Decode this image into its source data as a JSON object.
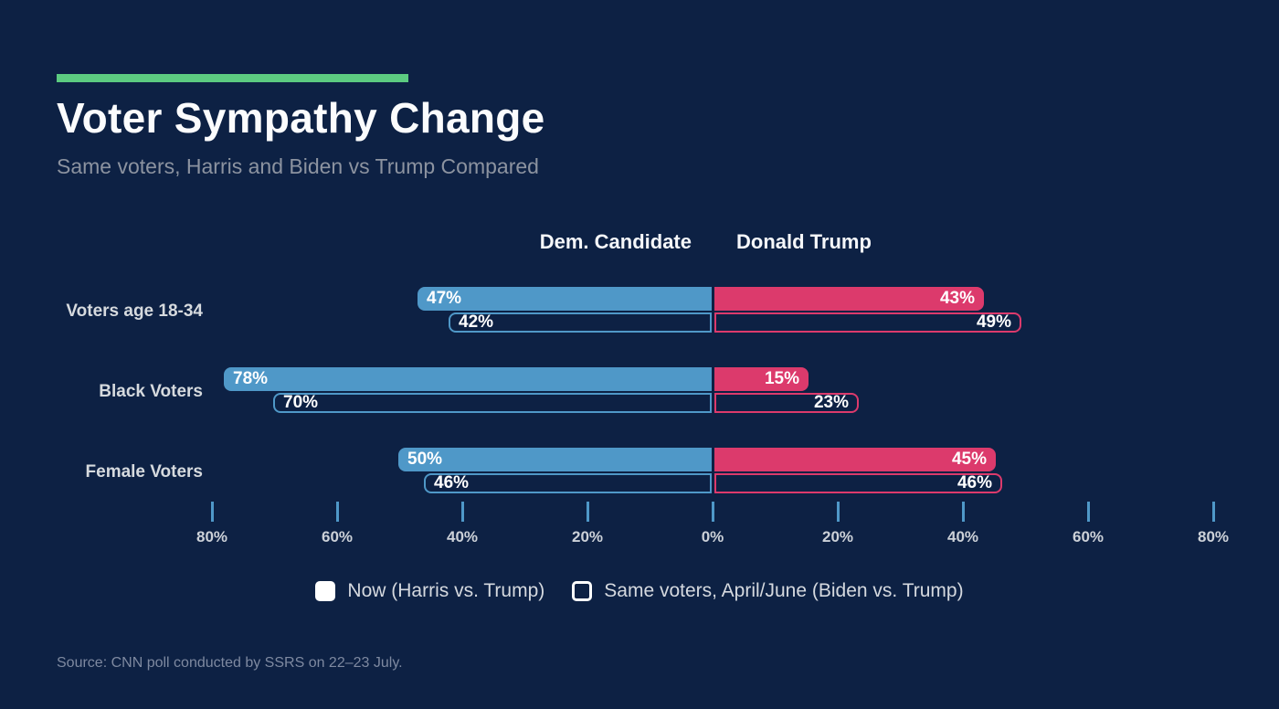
{
  "header": {
    "title": "Voter Sympathy Change",
    "subtitle": "Same voters, Harris and Biden vs Trump Compared"
  },
  "column_headers": {
    "dem": "Dem. Candidate",
    "trump": "Donald Trump"
  },
  "chart_data": {
    "type": "bar",
    "variant": "horizontal-diverging-grouped",
    "categories": [
      "Voters age 18-34",
      "Black Voters",
      "Female Voters"
    ],
    "series": [
      {
        "name": "Now (Harris vs. Trump)",
        "style": "filled",
        "dem_values": [
          47,
          78,
          50
        ],
        "trump_values": [
          43,
          15,
          45
        ]
      },
      {
        "name": "Same voters, April/June (Biden vs. Trump)",
        "style": "outlined",
        "dem_values": [
          42,
          70,
          46
        ],
        "trump_values": [
          49,
          23,
          46
        ]
      }
    ],
    "unit": "%",
    "axis": {
      "tick_labels": [
        "80%",
        "60%",
        "40%",
        "20%",
        "0%",
        "20%",
        "40%",
        "60%",
        "80%"
      ],
      "max_each_side": 80,
      "grid": false
    },
    "legend": [
      {
        "label": "Now (Harris vs. Trump)",
        "swatch": "filled"
      },
      {
        "label": "Same voters, April/June (Biden vs. Trump)",
        "swatch": "outlined"
      }
    ],
    "colors": {
      "dem_bar": "#4f98c8",
      "trump_bar": "#dc3a6c",
      "accent_bar": "#5ccb81",
      "background": "#0d2144",
      "title_text": "#fbfcfd",
      "subtitle_text": "#8c93a0"
    }
  },
  "source": "Source: CNN poll conducted by SSRS on 22–23 July."
}
